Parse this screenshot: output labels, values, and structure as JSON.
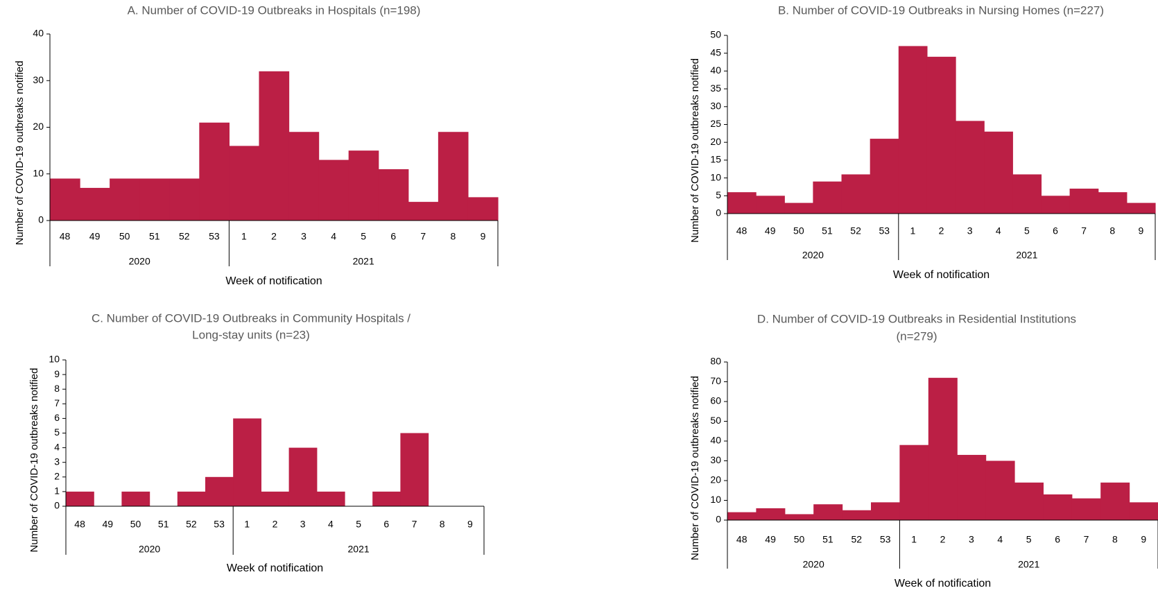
{
  "colors": {
    "bar": "#BB1F45",
    "axis": "#000000",
    "title": "#595959"
  },
  "chart_data": [
    {
      "type": "bar",
      "title_lines": [
        "A. Number of COVID-19 Outbreaks in Hospitals (n=198)"
      ],
      "xlabel": "Week of notification",
      "ylabel": "Number of COVID-19 outbreaks notified",
      "ylim": [
        0,
        40
      ],
      "yticks": [
        "0",
        "10",
        "20",
        "30",
        "40"
      ],
      "categories": [
        "48",
        "49",
        "50",
        "51",
        "52",
        "53",
        "1",
        "2",
        "3",
        "4",
        "5",
        "6",
        "7",
        "8",
        "9"
      ],
      "groups": [
        {
          "label": "2020",
          "count": 6
        },
        {
          "label": "2021",
          "count": 9
        }
      ],
      "values": [
        9,
        7,
        9,
        9,
        9,
        21,
        16,
        32,
        19,
        13,
        15,
        11,
        4,
        19,
        5
      ]
    },
    {
      "type": "bar",
      "title_lines": [
        "B. Number of COVID-19 Outbreaks in Nursing Homes (n=227)"
      ],
      "xlabel": "Week of notification",
      "ylabel": "Number of COVID-19 outbreaks notified",
      "ylim": [
        0,
        50
      ],
      "yticks": [
        "0",
        "5",
        "10",
        "15",
        "20",
        "25",
        "30",
        "35",
        "40",
        "45",
        "50"
      ],
      "categories": [
        "48",
        "49",
        "50",
        "51",
        "52",
        "53",
        "1",
        "2",
        "3",
        "4",
        "5",
        "6",
        "7",
        "8",
        "9"
      ],
      "groups": [
        {
          "label": "2020",
          "count": 6
        },
        {
          "label": "2021",
          "count": 9
        }
      ],
      "values": [
        6,
        5,
        3,
        9,
        11,
        21,
        47,
        44,
        26,
        23,
        11,
        5,
        7,
        6,
        3
      ]
    },
    {
      "type": "bar",
      "title_lines": [
        "C. Number of COVID-19 Outbreaks in Community Hospitals /",
        "Long-stay units (n=23)"
      ],
      "xlabel": "Week of notification",
      "ylabel": "Number of COVID-19 outbreaks notified",
      "ylim": [
        0,
        10
      ],
      "yticks": [
        "0",
        "1",
        "2",
        "3",
        "4",
        "5",
        "6",
        "7",
        "8",
        "9",
        "10"
      ],
      "categories": [
        "48",
        "49",
        "50",
        "51",
        "52",
        "53",
        "1",
        "2",
        "3",
        "4",
        "5",
        "6",
        "7",
        "8",
        "9"
      ],
      "groups": [
        {
          "label": "2020",
          "count": 6
        },
        {
          "label": "2021",
          "count": 9
        }
      ],
      "values": [
        1,
        0,
        1,
        0,
        1,
        2,
        6,
        1,
        4,
        1,
        0,
        1,
        5,
        0,
        0
      ]
    },
    {
      "type": "bar",
      "title_lines": [
        "D. Number of COVID-19 Outbreaks in Residential Institutions",
        "(n=279)"
      ],
      "xlabel": "Week of notification",
      "ylabel": "Number of COVID-19 outbreaks notified",
      "ylim": [
        0,
        80
      ],
      "yticks": [
        "0",
        "10",
        "20",
        "30",
        "40",
        "50",
        "60",
        "70",
        "80"
      ],
      "categories": [
        "48",
        "49",
        "50",
        "51",
        "52",
        "53",
        "1",
        "2",
        "3",
        "4",
        "5",
        "6",
        "7",
        "8",
        "9"
      ],
      "groups": [
        {
          "label": "2020",
          "count": 6
        },
        {
          "label": "2021",
          "count": 9
        }
      ],
      "values": [
        4,
        6,
        3,
        8,
        5,
        9,
        38,
        72,
        33,
        30,
        19,
        13,
        11,
        19,
        9
      ]
    }
  ]
}
